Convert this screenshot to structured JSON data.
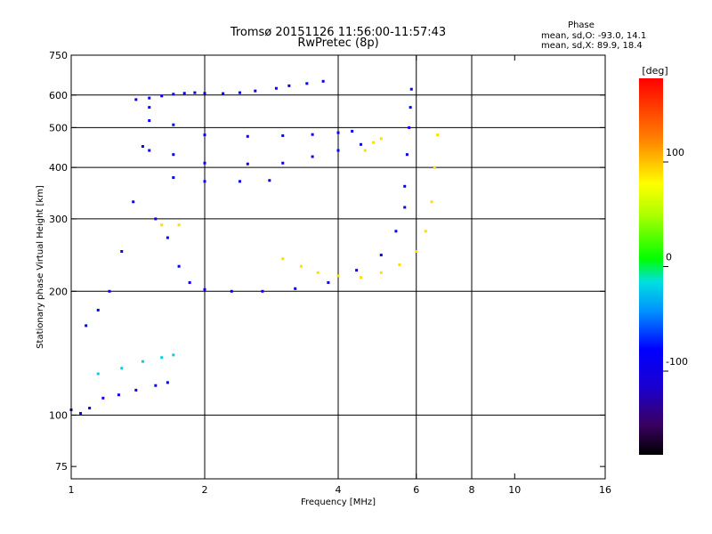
{
  "chart_data": {
    "type": "scatter",
    "title": "Tromsø 20151126 11:56:00-11:57:43",
    "subtitle": "RwPretec (8p)",
    "xlabel": "Frequency [MHz]",
    "ylabel": "Stationary phase Virtual Height [km]",
    "x_scale": "log",
    "y_scale": "log",
    "xlim": [
      1,
      16
    ],
    "ylim": [
      70,
      750
    ],
    "x_ticks": [
      1,
      2,
      4,
      6,
      8,
      10,
      16
    ],
    "x_tick_labels": [
      "1",
      "2",
      "4",
      "6",
      "8",
      "10",
      "16"
    ],
    "y_ticks": [
      75,
      100,
      200,
      300,
      400,
      500,
      600,
      750
    ],
    "y_tick_labels": [
      "75",
      "100",
      "200",
      "300",
      "400",
      "500",
      "600",
      "750"
    ],
    "x_grid": [
      2,
      4,
      6,
      8
    ],
    "y_grid": [
      100,
      200,
      300,
      400,
      500,
      600
    ],
    "grid": true,
    "stats": {
      "heading": "Phase",
      "o_line": "mean, sd,O: -93.0, 14.1",
      "x_line": "mean, sd,X:  89.9, 18.4"
    },
    "colorbar": {
      "label": "[deg]",
      "range": [
        -180,
        180
      ],
      "ticks": [
        100,
        0,
        -100
      ],
      "tick_labels": [
        "100",
        "0",
        "-100"
      ],
      "placement": "right"
    },
    "traces": [
      {
        "name": "",
        "phase": -93,
        "x": [
          1.4,
          1.5,
          1.6,
          1.7,
          1.8,
          1.9,
          2.0,
          2.2,
          2.4,
          2.6,
          2.9,
          3.1,
          3.4,
          3.7
        ],
        "y": [
          585,
          590,
          597,
          603,
          606,
          608,
          606,
          605,
          608,
          614,
          623,
          632,
          640,
          648
        ]
      },
      {
        "name": "",
        "phase": -93,
        "x": [
          1.5,
          1.7,
          2.0,
          2.5,
          3.0,
          3.5,
          4.0,
          4.3
        ],
        "y": [
          520,
          508,
          480,
          476,
          478,
          481,
          486,
          490
        ]
      },
      {
        "name": "",
        "phase": -93,
        "x": [
          1.5,
          1.7,
          2.0,
          2.5,
          3.0,
          3.5,
          4.0,
          4.5
        ],
        "y": [
          440,
          430,
          410,
          408,
          410,
          425,
          440,
          455
        ]
      },
      {
        "name": "",
        "phase": -93,
        "x": [
          1.7,
          2.0,
          2.4,
          2.8
        ],
        "y": [
          378,
          370,
          370,
          372
        ]
      },
      {
        "name": "",
        "phase": -93,
        "x": [
          1.55,
          1.65,
          1.75,
          1.85,
          2.0,
          2.3,
          2.7,
          3.2,
          3.8,
          4.4,
          5.0,
          5.4,
          5.65
        ],
        "y": [
          300,
          270,
          230,
          210,
          202,
          200,
          200,
          203,
          210,
          225,
          245,
          280,
          320
        ]
      },
      {
        "name": "",
        "phase": -93,
        "x": [
          5.65,
          5.72,
          5.78,
          5.82,
          5.85
        ],
        "y": [
          360,
          430,
          500,
          560,
          620
        ]
      },
      {
        "name": "",
        "phase": -93,
        "x": [
          1.08,
          1.15,
          1.22,
          1.3,
          1.38,
          1.45,
          1.5
        ],
        "y": [
          165,
          180,
          200,
          250,
          330,
          450,
          560
        ]
      },
      {
        "name": "",
        "phase": -93,
        "x": [
          1.0,
          1.05,
          1.1,
          1.18,
          1.28,
          1.4,
          1.55,
          1.65
        ],
        "y": [
          103,
          101,
          104,
          110,
          112,
          115,
          118,
          120
        ]
      },
      {
        "name": "",
        "phase": -20,
        "x": [
          1.15,
          1.3,
          1.45,
          1.6,
          1.7
        ],
        "y": [
          126,
          130,
          135,
          138,
          140
        ]
      },
      {
        "name": "",
        "phase": 90,
        "x": [
          3.0,
          3.3,
          3.6,
          4.0,
          4.5,
          5.0,
          5.5,
          6.0,
          6.3,
          6.5,
          6.6,
          6.7
        ],
        "y": [
          240,
          230,
          222,
          218,
          216,
          222,
          232,
          250,
          280,
          330,
          400,
          480
        ]
      },
      {
        "name": "",
        "phase": 90,
        "x": [
          4.6,
          4.8,
          5.0
        ],
        "y": [
          440,
          460,
          470
        ]
      },
      {
        "name": "",
        "phase": 90,
        "x": [
          1.6,
          1.75
        ],
        "y": [
          290,
          290
        ]
      }
    ]
  }
}
